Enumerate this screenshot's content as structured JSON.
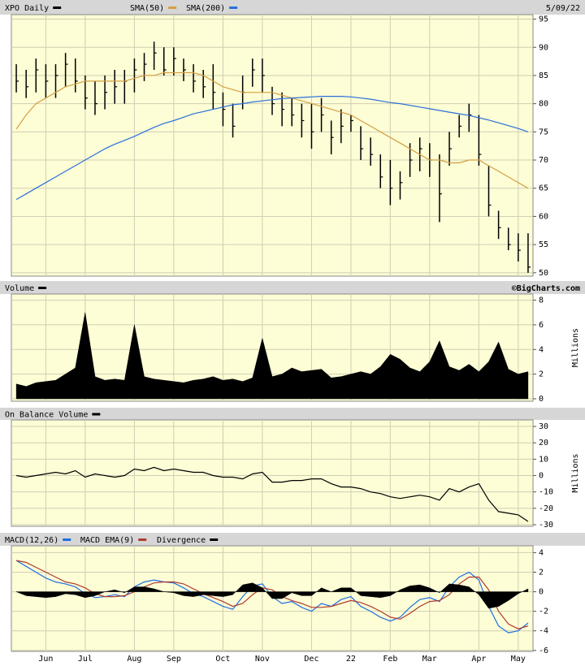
{
  "chart_data": [
    {
      "type": "ohlc",
      "date": "5/09/22",
      "ylim": [
        49.4,
        95.8
      ],
      "yticks": [
        50,
        55,
        60,
        65,
        70,
        75,
        80,
        85,
        90,
        95
      ],
      "grid": true,
      "series": [
        {
          "name": "XPO Daily",
          "color": "#000000",
          "high": [
            87,
            86,
            88,
            87,
            87,
            89,
            88,
            85,
            84,
            85,
            86,
            86,
            88,
            89,
            91,
            90,
            90,
            88,
            87,
            86,
            87,
            82,
            80,
            85,
            88,
            88,
            83,
            82,
            81,
            80,
            80,
            81,
            77,
            79,
            78,
            76,
            74,
            71,
            70,
            68,
            73,
            74,
            73,
            71,
            75,
            78,
            80,
            78,
            69,
            61,
            58,
            57,
            57
          ],
          "low": [
            82,
            81,
            82,
            81,
            81,
            83,
            82,
            79,
            78,
            79,
            80,
            80,
            82,
            84,
            86,
            85,
            85,
            84,
            82,
            81,
            79,
            76,
            74,
            79,
            83,
            82,
            78,
            76,
            76,
            74,
            72,
            75,
            71,
            73,
            75,
            70,
            69,
            65,
            62,
            63,
            67,
            68,
            67,
            59,
            69,
            74,
            75,
            69,
            60,
            56,
            54,
            52,
            50
          ],
          "close": [
            84,
            83,
            86,
            84,
            85,
            87,
            84,
            81,
            80,
            82,
            83,
            84,
            86,
            87,
            89,
            86,
            88,
            86,
            84,
            83,
            82,
            79,
            76,
            82,
            86,
            85,
            80,
            79,
            78,
            77,
            75,
            78,
            74,
            76,
            77,
            72,
            71,
            67,
            65,
            66,
            70,
            72,
            70,
            64,
            72,
            76,
            78,
            71,
            62,
            58,
            55,
            54,
            51
          ]
        },
        {
          "name": "SMA(50)",
          "color": "#d4a042",
          "values": [
            75.5,
            78,
            80,
            81,
            82,
            83,
            83.5,
            84,
            84,
            84,
            84,
            84,
            84.5,
            85,
            85,
            85.5,
            85.5,
            85.5,
            85.5,
            85,
            84,
            83,
            82.5,
            82,
            82,
            82,
            82,
            81.5,
            81,
            80.5,
            80,
            79.5,
            79,
            78.5,
            78,
            77,
            76,
            75,
            74,
            73,
            72,
            71,
            70,
            70,
            69.5,
            69.5,
            70,
            70,
            69,
            68,
            67,
            66,
            65
          ]
        },
        {
          "name": "SMA(200)",
          "color": "#2a6fdb",
          "values": [
            63,
            64,
            65,
            66,
            67,
            68,
            69,
            70,
            71,
            72,
            72.8,
            73.5,
            74.2,
            75,
            75.8,
            76.5,
            77,
            77.6,
            78.2,
            78.6,
            79,
            79.4,
            79.8,
            80,
            80.3,
            80.5,
            80.7,
            80.9,
            81,
            81.1,
            81.2,
            81.3,
            81.3,
            81.3,
            81.2,
            81,
            80.8,
            80.5,
            80.2,
            80,
            79.7,
            79.4,
            79.1,
            78.8,
            78.5,
            78.2,
            77.9,
            77.5,
            77.1,
            76.6,
            76.1,
            75.6,
            75
          ]
        }
      ]
    },
    {
      "type": "area",
      "credit": "©BigCharts.com",
      "y_label": "Millions",
      "ylim": [
        -0.2,
        8.5
      ],
      "yticks": [
        0,
        2,
        4,
        6,
        8
      ],
      "grid": true,
      "series": [
        {
          "name": "Volume",
          "color": "#000000",
          "values": [
            1.2,
            1.0,
            1.3,
            1.4,
            1.5,
            2.0,
            2.5,
            7.0,
            1.8,
            1.5,
            1.6,
            1.5,
            6.0,
            1.8,
            1.6,
            1.5,
            1.4,
            1.3,
            1.5,
            1.6,
            1.8,
            1.5,
            1.6,
            1.4,
            1.7,
            4.9,
            1.8,
            2.0,
            2.5,
            2.2,
            2.3,
            2.4,
            1.7,
            1.8,
            2.0,
            2.2,
            2.0,
            2.6,
            3.6,
            3.2,
            2.5,
            2.2,
            3.0,
            4.7,
            2.6,
            2.3,
            2.8,
            2.2,
            3.0,
            4.6,
            2.4,
            2.0,
            2.2
          ]
        }
      ]
    },
    {
      "type": "line",
      "y_label": "Millions",
      "ylim": [
        -31,
        34
      ],
      "yticks": [
        -30,
        -20,
        -10,
        0,
        10,
        20,
        30
      ],
      "grid": true,
      "series": [
        {
          "name": "On Balance Volume",
          "color": "#000000",
          "values": [
            0,
            -1,
            0,
            1,
            2,
            1,
            3,
            -1,
            1,
            0,
            -1,
            0,
            4,
            3,
            5,
            3,
            4,
            3,
            2,
            2,
            0,
            -1,
            -1,
            -2,
            1,
            2,
            -4,
            -4,
            -3,
            -3,
            -2,
            -2,
            -5,
            -7,
            -7,
            -8,
            -10,
            -11,
            -13,
            -14,
            -13,
            -12,
            -13,
            -15,
            -8,
            -10,
            -7,
            -5,
            -15,
            -22,
            -23,
            -24,
            -28
          ]
        }
      ]
    },
    {
      "type": "line",
      "ylim": [
        -6.1,
        4.7
      ],
      "yticks": [
        -6,
        -4,
        -2,
        0,
        2,
        4
      ],
      "grid": true,
      "categories": [
        null,
        null,
        null,
        "Jun",
        null,
        null,
        null,
        "Jul",
        null,
        null,
        null,
        null,
        "Aug",
        null,
        null,
        null,
        "Sep",
        null,
        null,
        null,
        null,
        "Oct",
        null,
        null,
        null,
        "Nov",
        null,
        null,
        null,
        null,
        "Dec",
        null,
        null,
        null,
        "22",
        null,
        null,
        null,
        "Feb",
        null,
        null,
        null,
        "Mar",
        null,
        null,
        null,
        null,
        "Apr",
        null,
        null,
        null,
        "May",
        null
      ],
      "series": [
        {
          "name": "MACD(12,26)",
          "color": "#1e6fe0",
          "values": [
            3.2,
            2.6,
            2.0,
            1.4,
            1.0,
            0.8,
            0.5,
            -0.2,
            -0.6,
            -0.5,
            -0.3,
            -0.5,
            0.5,
            1.0,
            1.2,
            1.0,
            0.9,
            0.4,
            -0.2,
            -0.5,
            -1.0,
            -1.5,
            -1.8,
            -0.5,
            0.6,
            0.8,
            -0.5,
            -1.2,
            -1.0,
            -1.6,
            -2.0,
            -1.2,
            -1.5,
            -0.8,
            -0.5,
            -1.5,
            -2.0,
            -2.6,
            -3.0,
            -2.6,
            -1.6,
            -0.8,
            -0.6,
            -1.0,
            0.5,
            1.5,
            2.0,
            1.2,
            -1.5,
            -3.5,
            -4.2,
            -4.0,
            -3.2
          ]
        },
        {
          "name": "MACD EMA(9)",
          "color": "#b03a2e",
          "values": [
            3.2,
            3.0,
            2.5,
            2.0,
            1.5,
            1.0,
            0.8,
            0.4,
            -0.2,
            -0.5,
            -0.5,
            -0.4,
            0.0,
            0.5,
            0.9,
            1.0,
            1.0,
            0.8,
            0.3,
            -0.2,
            -0.6,
            -1.0,
            -1.5,
            -1.2,
            -0.3,
            0.4,
            0.2,
            -0.5,
            -0.9,
            -1.2,
            -1.6,
            -1.6,
            -1.5,
            -1.2,
            -0.9,
            -1.1,
            -1.5,
            -2.0,
            -2.6,
            -2.8,
            -2.2,
            -1.5,
            -1.0,
            -0.9,
            -0.3,
            0.8,
            1.5,
            1.5,
            0.2,
            -2.0,
            -3.3,
            -3.8,
            -3.5
          ]
        },
        {
          "name": "Divergence",
          "color": "#000000",
          "style": "area",
          "values": [
            0,
            -0.4,
            -0.5,
            -0.6,
            -0.5,
            -0.2,
            -0.3,
            -0.6,
            -0.4,
            0,
            0.2,
            -0.1,
            0.5,
            0.5,
            0.3,
            0,
            -0.1,
            -0.4,
            -0.5,
            -0.3,
            -0.4,
            -0.5,
            -0.3,
            0.7,
            0.9,
            0.4,
            -0.7,
            -0.7,
            -0.1,
            -0.4,
            -0.4,
            0.4,
            0,
            0.4,
            0.4,
            -0.4,
            -0.5,
            -0.6,
            -0.4,
            0.2,
            0.6,
            0.7,
            0.4,
            -0.1,
            0.8,
            0.7,
            0.5,
            -0.3,
            -1.7,
            -1.5,
            -0.9,
            -0.2,
            0.3
          ]
        }
      ]
    }
  ]
}
